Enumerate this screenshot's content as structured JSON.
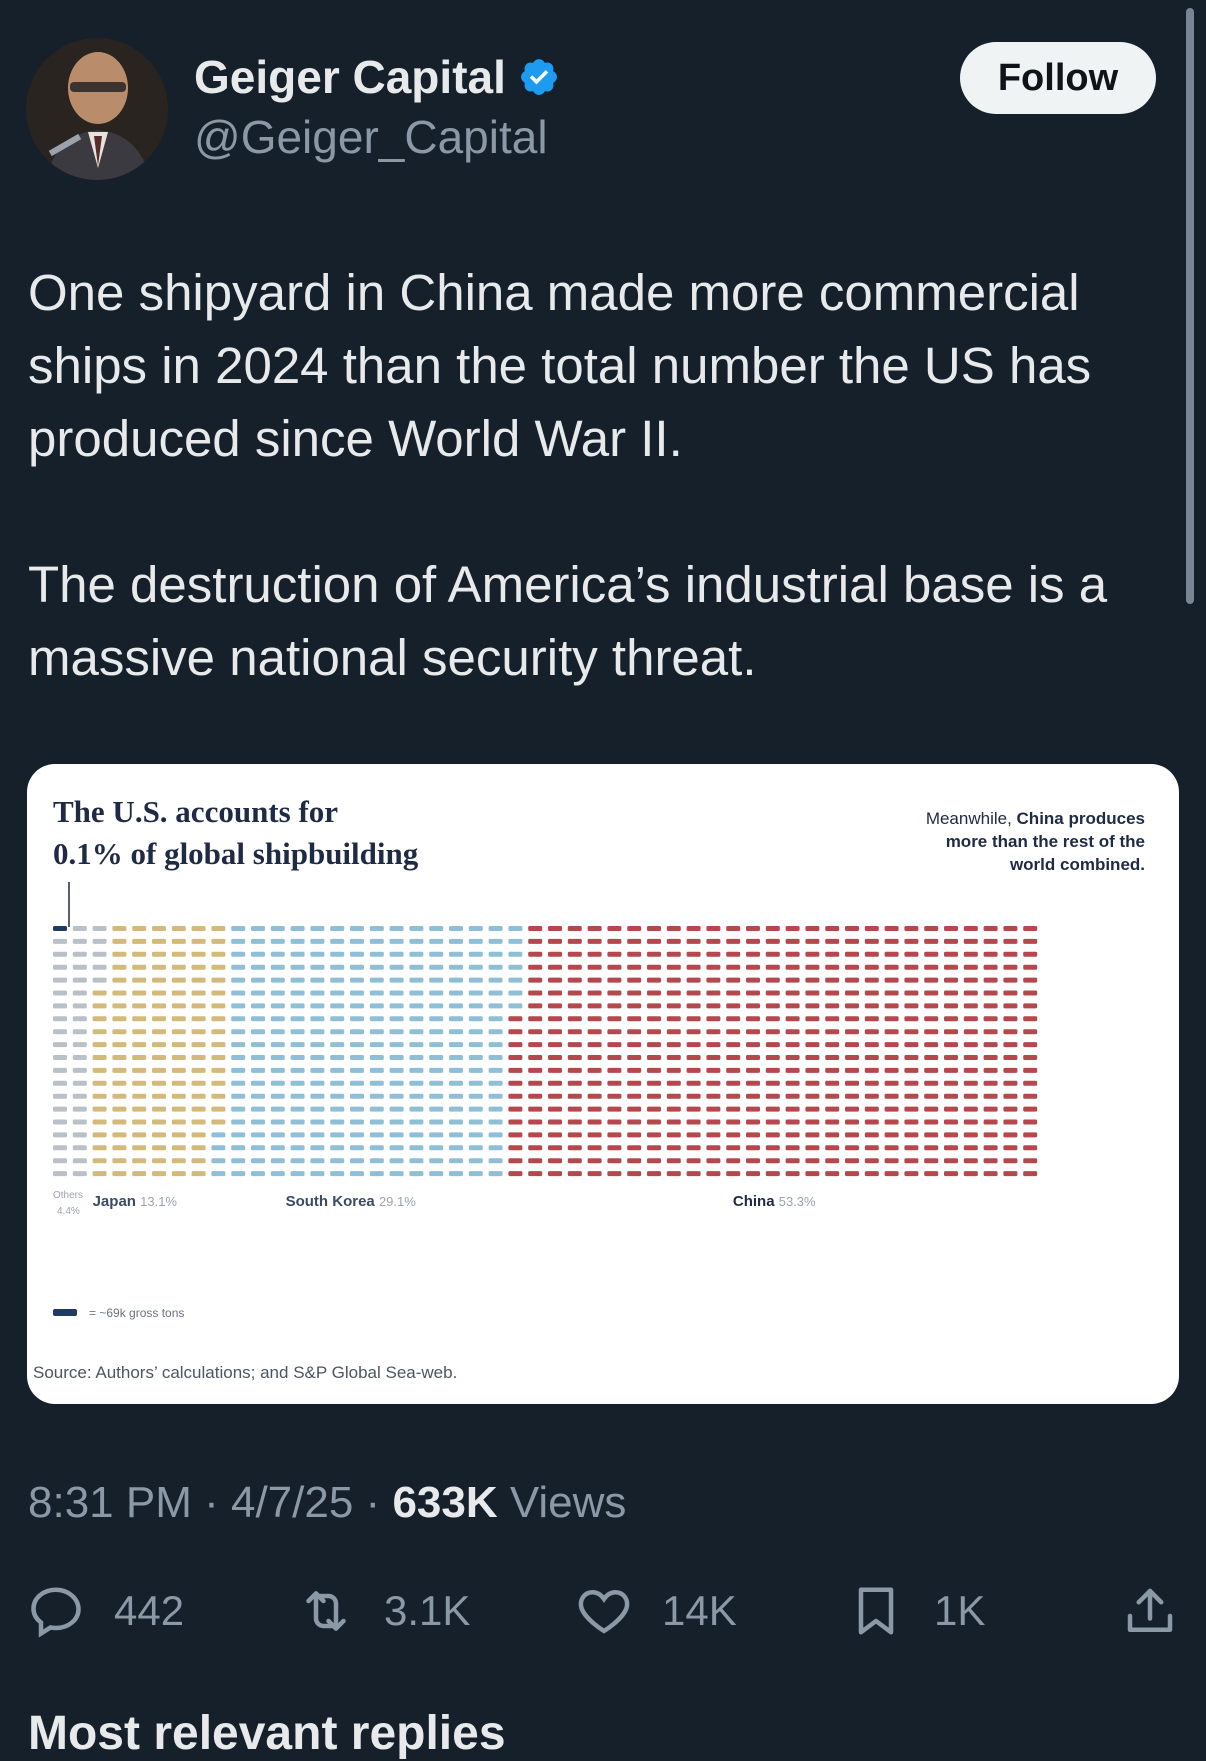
{
  "author": {
    "name": "Geiger Capital",
    "handle": "@Geiger_Capital",
    "verified": true
  },
  "follow_label": "Follow",
  "tweet": {
    "paragraphs": [
      "One shipyard in China made more commercial ships in 2024 than the total number the US has produced since World War II.",
      "The destruction of America’s industrial base is a massive national security threat."
    ]
  },
  "media": {
    "title_line1": "The U.S. accounts for",
    "title_line2": "0.1% of global shipbuilding",
    "side_note_prefix": "Meanwhile, ",
    "side_note_bold1": "China produces",
    "side_note_line2": "more than the rest of the",
    "side_note_line3": "world combined.",
    "legend_text": "= ~69k gross tons",
    "source": "Source: Authors’ calculations; and S&P Global Sea-web.",
    "colors": {
      "us": "#1f3b63",
      "others": "#b9c0c8",
      "japan": "#d3b97a",
      "south_korea": "#8fbfd6",
      "china": "#b5484c"
    }
  },
  "chart_data": {
    "type": "waffle",
    "title": "The U.S. accounts for 0.1% of global shipbuilding",
    "unit_label": "= ~69k gross tons",
    "categories": [
      "Others",
      "Japan",
      "South Korea",
      "China"
    ],
    "labels": [
      {
        "name": "Others",
        "value_label": "4.4%"
      },
      {
        "name": "Japan",
        "value_label": "13.1%"
      },
      {
        "name": "South Korea",
        "value_label": "29.1%"
      },
      {
        "name": "China",
        "value_label": "53.3%"
      }
    ],
    "values": [
      4.4,
      13.1,
      29.1,
      53.3
    ],
    "highlight": {
      "name": "U.S.",
      "value": 0.1
    },
    "rows": 20,
    "columns": 50
  },
  "timestamp": {
    "time": "8:31 PM",
    "sep1": " · ",
    "date": "4/7/25",
    "sep2": " · ",
    "views_count": "633K",
    "views_label": " Views"
  },
  "actions": {
    "replies": "442",
    "reposts": "3.1K",
    "likes": "14K",
    "bookmarks": "1K"
  },
  "next_section": "Most relevant replies"
}
